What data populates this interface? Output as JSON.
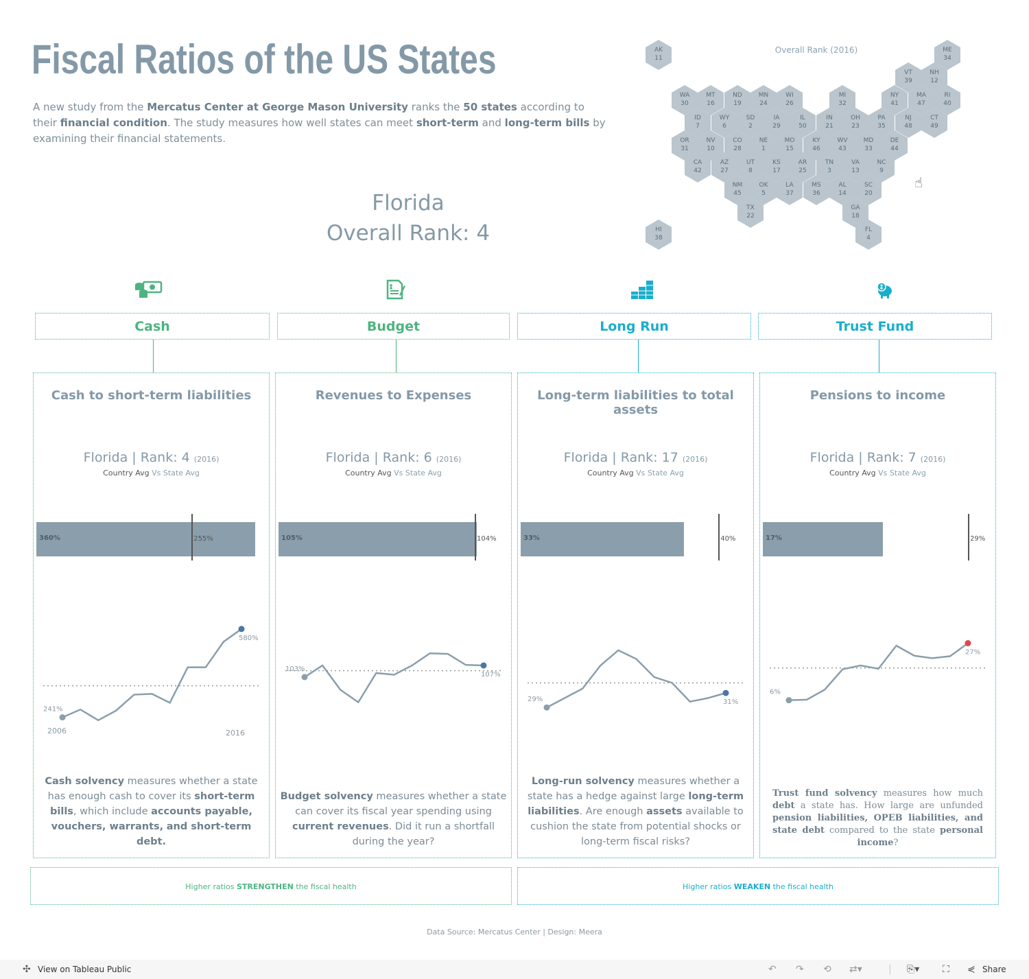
{
  "title": "Fiscal Ratios of the US States",
  "intro": [
    {
      "t": "A new study from the "
    },
    {
      "t": "Mercatus Center at George Mason University",
      "b": true
    },
    {
      "t": " ranks the "
    },
    {
      "t": "50 states",
      "b": true
    },
    {
      "t": " according to their "
    },
    {
      "t": "financial condition",
      "b": true
    },
    {
      "t": ". The study measures how well states can meet "
    },
    {
      "t": "short-term",
      "b": true
    },
    {
      "t": " and "
    },
    {
      "t": "long-term bills",
      "b": true
    },
    {
      "t": " by examining their financial statements."
    }
  ],
  "selection": {
    "state": "Florida",
    "overall_rank": "Overall Rank: 4"
  },
  "map": {
    "title": "Overall Rank (2016)",
    "hex_color": "#bac5cd",
    "states": [
      {
        "abbr": "AK",
        "rank": 11
      },
      {
        "abbr": "ME",
        "rank": 34
      },
      {
        "abbr": "VT",
        "rank": 39
      },
      {
        "abbr": "NH",
        "rank": 12
      },
      {
        "abbr": "WA",
        "rank": 30
      },
      {
        "abbr": "MT",
        "rank": 16
      },
      {
        "abbr": "ND",
        "rank": 19
      },
      {
        "abbr": "MN",
        "rank": 24
      },
      {
        "abbr": "WI",
        "rank": 26
      },
      {
        "abbr": "MI",
        "rank": 32
      },
      {
        "abbr": "NY",
        "rank": 41
      },
      {
        "abbr": "MA",
        "rank": 47
      },
      {
        "abbr": "RI",
        "rank": 40
      },
      {
        "abbr": "ID",
        "rank": 7
      },
      {
        "abbr": "WY",
        "rank": 6
      },
      {
        "abbr": "SD",
        "rank": 2
      },
      {
        "abbr": "IA",
        "rank": 29
      },
      {
        "abbr": "IL",
        "rank": 50
      },
      {
        "abbr": "IN",
        "rank": 21
      },
      {
        "abbr": "OH",
        "rank": 23
      },
      {
        "abbr": "PA",
        "rank": 35
      },
      {
        "abbr": "NJ",
        "rank": 48
      },
      {
        "abbr": "CT",
        "rank": 49
      },
      {
        "abbr": "OR",
        "rank": 31
      },
      {
        "abbr": "NV",
        "rank": 10
      },
      {
        "abbr": "CO",
        "rank": 28
      },
      {
        "abbr": "NE",
        "rank": 1
      },
      {
        "abbr": "MO",
        "rank": 15
      },
      {
        "abbr": "KY",
        "rank": 46
      },
      {
        "abbr": "WV",
        "rank": 43
      },
      {
        "abbr": "MD",
        "rank": 33
      },
      {
        "abbr": "DE",
        "rank": 44
      },
      {
        "abbr": "CA",
        "rank": 42
      },
      {
        "abbr": "AZ",
        "rank": 27
      },
      {
        "abbr": "UT",
        "rank": 8
      },
      {
        "abbr": "KS",
        "rank": 17
      },
      {
        "abbr": "AR",
        "rank": 25
      },
      {
        "abbr": "TN",
        "rank": 3
      },
      {
        "abbr": "VA",
        "rank": 13
      },
      {
        "abbr": "NC",
        "rank": 9
      },
      {
        "abbr": "NM",
        "rank": 45
      },
      {
        "abbr": "OK",
        "rank": 5
      },
      {
        "abbr": "LA",
        "rank": 37
      },
      {
        "abbr": "MS",
        "rank": 36
      },
      {
        "abbr": "AL",
        "rank": 14
      },
      {
        "abbr": "SC",
        "rank": 20
      },
      {
        "abbr": "TX",
        "rank": 22
      },
      {
        "abbr": "GA",
        "rank": 18
      },
      {
        "abbr": "HI",
        "rank": 38
      },
      {
        "abbr": "FL",
        "rank": 4
      }
    ]
  },
  "colors": {
    "green": "#4db380",
    "teal": "#1aaecb",
    "bar": "#8a9fab",
    "line": "#8a9fab",
    "end_blue": "#4a76a8",
    "end_red": "#e0474c"
  },
  "categories": [
    {
      "id": "cash",
      "icon": "money-icon",
      "label": "Cash",
      "color": "green",
      "panel": {
        "title": "Cash to short-term liabilities",
        "state": "Florida",
        "rank": "Rank: 4",
        "year": "(2016)",
        "sub_a": "Country Avg",
        "sub_b": "Vs State Avg",
        "state_label": "360%",
        "avg_label": "255%",
        "start_year": "2006",
        "end_year": "2016",
        "desc": [
          {
            "t": "Cash solvency",
            "b": true
          },
          {
            "t": " measures whether a state has enough cash to cover its "
          },
          {
            "t": "short-term bills",
            "b": true
          },
          {
            "t": ", which include "
          },
          {
            "t": "accounts payable, vouchers, warrants,",
            "b": true
          },
          {
            "t": " "
          },
          {
            "t": "and short-term debt.",
            "b": true
          }
        ]
      }
    },
    {
      "id": "budget",
      "icon": "budget-document-icon",
      "label": "Budget",
      "color": "green",
      "panel": {
        "title": "Revenues to Expenses",
        "state": "Florida",
        "rank": "Rank: 6",
        "year": "(2016)",
        "sub_a": "Country Avg",
        "sub_b": "Vs State Avg",
        "state_label": "105%",
        "avg_label": "104%",
        "desc": [
          {
            "t": "Budget solvency",
            "b": true
          },
          {
            "t": " measures whether a state can cover its fiscal year spending using "
          },
          {
            "t": "current revenues",
            "b": true
          },
          {
            "t": ". Did it run a shortfall during the year?"
          }
        ]
      }
    },
    {
      "id": "longrun",
      "icon": "buildings-icon",
      "label": "Long Run",
      "color": "teal",
      "panel": {
        "title": "Long-term liabilities to total assets",
        "state": "Florida",
        "rank": "Rank: 17",
        "year": "(2016)",
        "sub_a": "Country Avg",
        "sub_b": "Vs State Avg",
        "state_label": "33%",
        "avg_label": "40%",
        "desc": [
          {
            "t": "Long-run solvency",
            "b": true
          },
          {
            "t": " measures whether a state has a hedge against large "
          },
          {
            "t": "long-term liabilities",
            "b": true
          },
          {
            "t": ". Are enough "
          },
          {
            "t": "assets",
            "b": true
          },
          {
            "t": " available to cushion the state from potential shocks or long-term fiscal risks?"
          }
        ]
      }
    },
    {
      "id": "trust",
      "icon": "piggy-bank-icon",
      "label": "Trust Fund",
      "color": "teal",
      "panel": {
        "title": "Pensions to income",
        "state": "Florida",
        "rank": "Rank: 7",
        "year": "(2016)",
        "sub_a": "Country Avg",
        "sub_b": "Vs State Avg",
        "state_label": "17%",
        "avg_label": "29%",
        "desc": [
          {
            "t": "Trust fund solvency",
            "b": true
          },
          {
            "t": " measures how much "
          },
          {
            "t": "debt",
            "b": true
          },
          {
            "t": " a state has. How large are unfunded "
          },
          {
            "t": "pension liabilities, OPEB liabilities, and state debt",
            "b": true
          },
          {
            "t": " compared to the state "
          },
          {
            "t": "personal income",
            "b": true
          },
          {
            "t": "?"
          }
        ]
      }
    }
  ],
  "chart_data": [
    {
      "type": "bar",
      "id": "cash",
      "title": "Cash to short-term liabilities",
      "state_value": 360,
      "avg_value": 255,
      "unit": "%",
      "xlim": [
        0,
        372
      ]
    },
    {
      "type": "line",
      "id": "cash",
      "x": [
        2006,
        2007,
        2008,
        2009,
        2010,
        2011,
        2012,
        2013,
        2014,
        2015,
        2016
      ],
      "values": [
        241,
        271,
        230,
        267,
        328,
        331,
        297,
        433,
        433,
        531,
        580
      ],
      "avg": 362,
      "ylim": [
        140,
        640
      ],
      "start_label": "241%",
      "end_label": "580%",
      "end_color": "end_blue"
    },
    {
      "type": "bar",
      "id": "budget",
      "title": "Revenues to Expenses",
      "state_value": 105,
      "avg_value": 104,
      "unit": "%",
      "xlim": [
        0,
        120
      ]
    },
    {
      "type": "line",
      "id": "budget",
      "x": [
        2006,
        2007,
        2008,
        2009,
        2010,
        2011,
        2012,
        2013,
        2014,
        2015,
        2016
      ],
      "values": [
        103,
        107,
        98.6,
        94.3,
        104.4,
        103.8,
        107,
        111.2,
        111,
        107.2,
        107
      ],
      "avg": 105.2,
      "ylim": [
        80,
        125
      ],
      "start_label": "103%",
      "end_label": "107%",
      "end_color": "end_blue"
    },
    {
      "type": "bar",
      "id": "longrun",
      "title": "Long-term liabilities to total assets",
      "state_value": 33,
      "avg_value": 40,
      "unit": "%",
      "xlim": [
        0,
        45.8
      ]
    },
    {
      "type": "line",
      "id": "longrun",
      "x": [
        2006,
        2007,
        2008,
        2009,
        2010,
        2011,
        2012,
        2013,
        2014,
        2015,
        2016
      ],
      "values": [
        29,
        30.3,
        31.6,
        34.8,
        36.9,
        35.7,
        33.2,
        32.4,
        29.8,
        30.3,
        31
      ],
      "avg": 32.4,
      "ylim": [
        24,
        42
      ],
      "start_label": "29%",
      "end_label": "31%",
      "end_color": "end_blue"
    },
    {
      "type": "bar",
      "id": "trust",
      "title": "Pensions to income",
      "state_value": 17,
      "avg_value": 29,
      "unit": "%",
      "xlim": [
        0,
        32
      ]
    },
    {
      "type": "line",
      "id": "trust",
      "x": [
        2006,
        2007,
        2008,
        2009,
        2010,
        2011,
        2012,
        2013,
        2014,
        2015,
        2016
      ],
      "values": [
        6,
        6.2,
        9.9,
        17.4,
        18.8,
        17.6,
        26.1,
        22.4,
        21.5,
        22.2,
        27
      ],
      "avg": 17.9,
      "ylim": [
        -10,
        38
      ],
      "start_label": "6%",
      "end_label": "27%",
      "end_color": "end_red"
    }
  ],
  "footer": {
    "strengthen": [
      {
        "t": "Higher ratios "
      },
      {
        "t": "STRENGTHEN",
        "b": true
      },
      {
        "t": " the fiscal health"
      }
    ],
    "weaken": [
      {
        "t": "Higher ratios "
      },
      {
        "t": "WEAKEN",
        "b": true
      },
      {
        "t": " the fiscal health"
      }
    ],
    "source": "Data Source: Mercatus Center | Design: Meera"
  },
  "toolbar": {
    "view": "View on Tableau Public",
    "share": "Share"
  }
}
